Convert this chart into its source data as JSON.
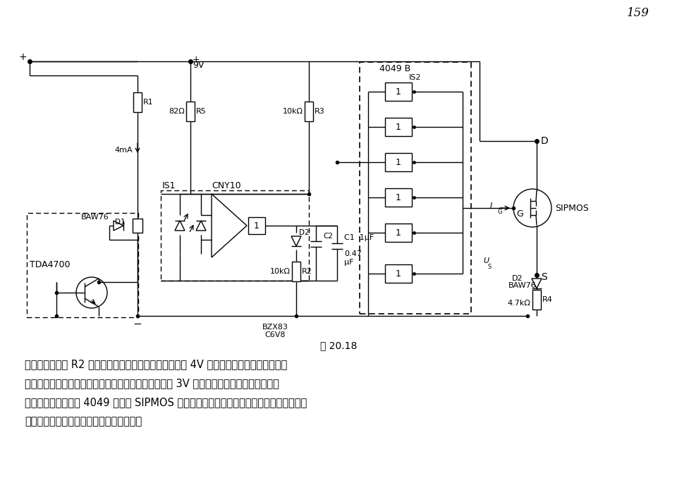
{
  "page_num": "159",
  "fig_caption": "图 20.18",
  "caption_lines": [
    "输入端经过电阻 R2 接地，以使其输出端在电源电压降至 4V 时还是开路的，即两个推挽输",
    "出晶体管保持在截止状态。这样可使电源电压在上升至 3V 左右时光耦输出侧仍为低电平，",
    "以使后接的六反相器 4049 能控制 SIPMOS 晶体管。在工作阶段，光耦输出端开路，使六反",
    "相器输出端为高电平，而输出端为低电平。"
  ],
  "bg_color": "#ffffff",
  "lc": "#000000",
  "lw": 1.0
}
